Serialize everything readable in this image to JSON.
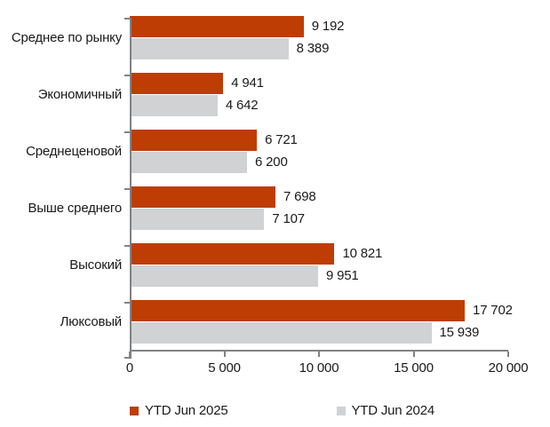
{
  "chart_data": {
    "type": "bar",
    "orientation": "horizontal",
    "title": "",
    "categories": [
      "Среднее по рынку",
      "Экономичный",
      "Среднеценовой",
      "Выше среднего",
      "Высокий",
      "Люксовый"
    ],
    "series": [
      {
        "name": "YTD Jun 2025",
        "color": "#BE3D05",
        "values": [
          9192,
          4941,
          6721,
          7698,
          10821,
          17702
        ]
      },
      {
        "name": "YTD Jun 2024",
        "color": "#D0D2D3",
        "values": [
          8389,
          4642,
          6200,
          7107,
          9951,
          15939
        ]
      }
    ],
    "value_labels": [
      "9 192",
      "8 389",
      "4 941",
      "4 642",
      "6 721",
      "6 200",
      "7 698",
      "7 107",
      "10 821",
      "9 951",
      "17 702",
      "15 939"
    ],
    "xlim": [
      0,
      20000
    ],
    "x_ticks": [
      0,
      5000,
      10000,
      15000,
      20000
    ],
    "x_tick_labels": [
      "0",
      "5 000",
      "10 000",
      "15 000",
      "20 000"
    ],
    "grid": false,
    "legend_position": "bottom"
  },
  "colors": {
    "axis": "#808285",
    "text": "#1A1A1A",
    "background": "#FFFFFF",
    "series_2025": "#BE3D05",
    "series_2024": "#D0D2D3"
  }
}
